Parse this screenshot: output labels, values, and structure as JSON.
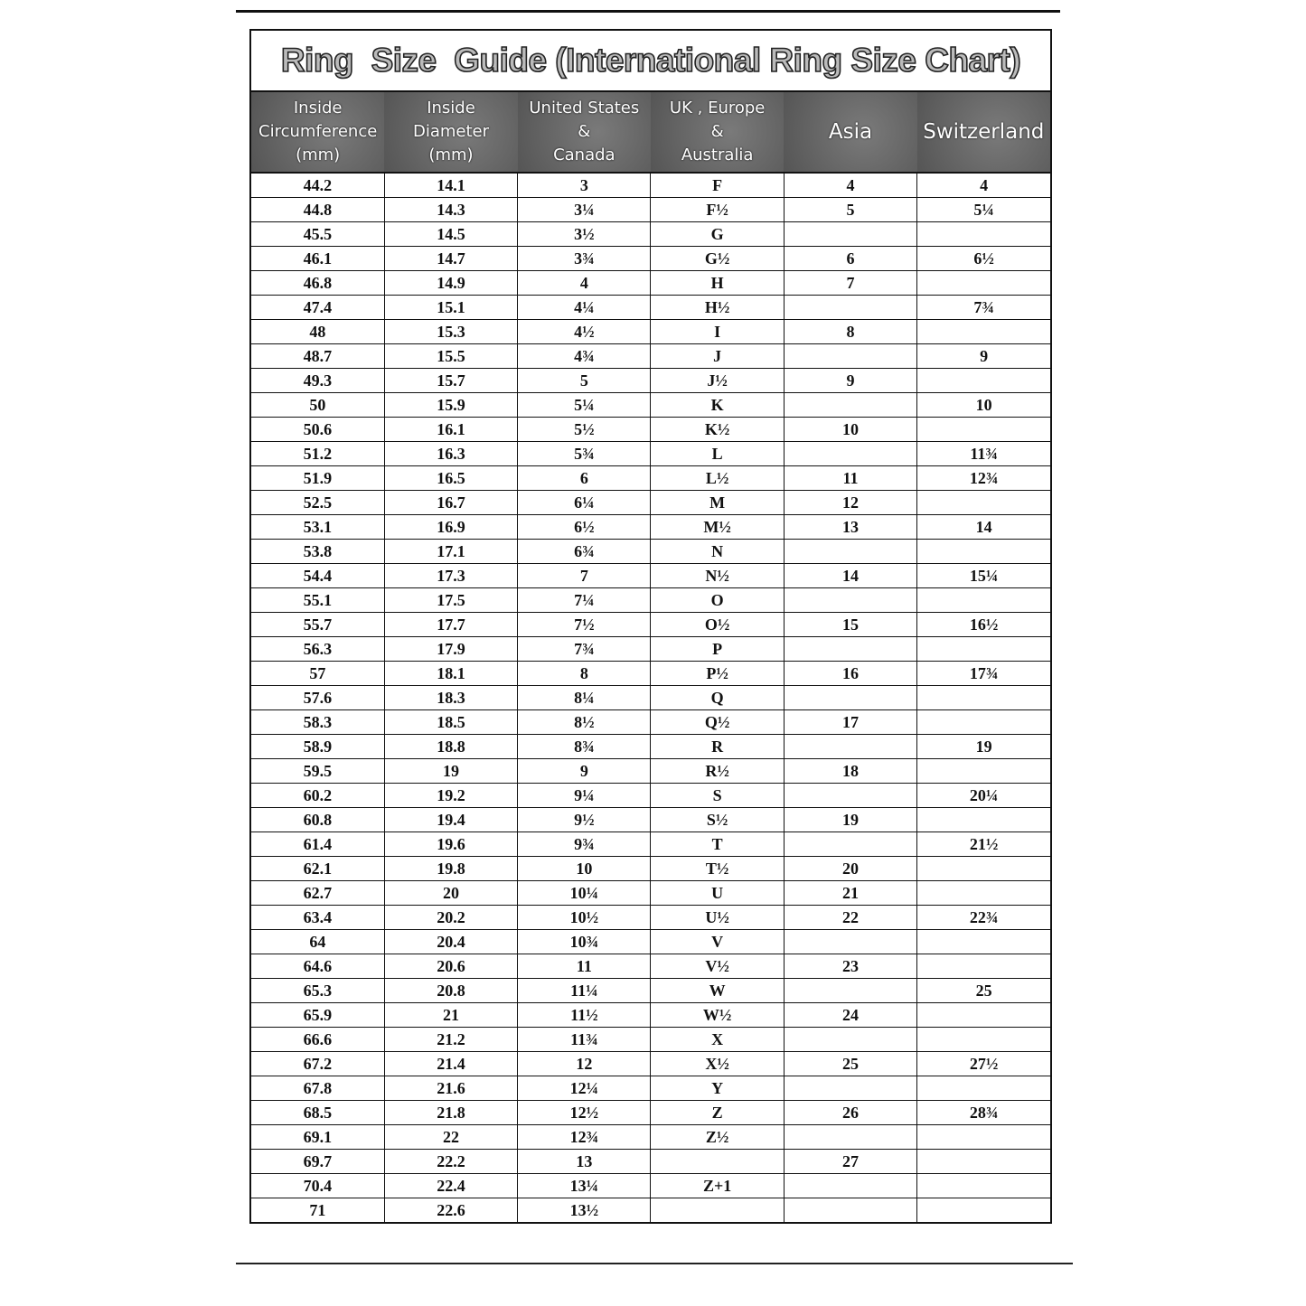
{
  "title": "Ring  Size  Guide (International Ring Size Chart)",
  "headers": [
    [
      "Inside",
      "Circumference",
      "(mm)"
    ],
    [
      "Inside",
      "Diameter",
      "(mm)"
    ],
    [
      "United States",
      "&",
      "Canada"
    ],
    [
      "UK , Europe",
      "&",
      "Australia"
    ],
    [
      "Asia"
    ],
    [
      "Switzerland"
    ]
  ],
  "rows": [
    [
      "44.2",
      "14.1",
      "3",
      "F",
      "4",
      "4"
    ],
    [
      "44.8",
      "14.3",
      "3¼",
      "F½",
      "5",
      "5¼"
    ],
    [
      "45.5",
      "14.5",
      "3½",
      "G",
      "",
      ""
    ],
    [
      "46.1",
      "14.7",
      "3¾",
      "G½",
      "6",
      "6½"
    ],
    [
      "46.8",
      "14.9",
      "4",
      "H",
      "7",
      ""
    ],
    [
      "47.4",
      "15.1",
      "4¼",
      "H½",
      "",
      "7¾"
    ],
    [
      "48",
      "15.3",
      "4½",
      "I",
      "8",
      ""
    ],
    [
      "48.7",
      "15.5",
      "4¾",
      "J",
      "",
      "9"
    ],
    [
      "49.3",
      "15.7",
      "5",
      "J½",
      "9",
      ""
    ],
    [
      "50",
      "15.9",
      "5¼",
      "K",
      "",
      "10"
    ],
    [
      "50.6",
      "16.1",
      "5½",
      "K½",
      "10",
      ""
    ],
    [
      "51.2",
      "16.3",
      "5¾",
      "L",
      "",
      "11¾"
    ],
    [
      "51.9",
      "16.5",
      "6",
      "L½",
      "11",
      "12¾"
    ],
    [
      "52.5",
      "16.7",
      "6¼",
      "M",
      "12",
      ""
    ],
    [
      "53.1",
      "16.9",
      "6½",
      "M½",
      "13",
      "14"
    ],
    [
      "53.8",
      "17.1",
      "6¾",
      "N",
      "",
      ""
    ],
    [
      "54.4",
      "17.3",
      "7",
      "N½",
      "14",
      "15¼"
    ],
    [
      "55.1",
      "17.5",
      "7¼",
      "O",
      "",
      ""
    ],
    [
      "55.7",
      "17.7",
      "7½",
      "O½",
      "15",
      "16½"
    ],
    [
      "56.3",
      "17.9",
      "7¾",
      "P",
      "",
      ""
    ],
    [
      "57",
      "18.1",
      "8",
      "P½",
      "16",
      "17¾"
    ],
    [
      "57.6",
      "18.3",
      "8¼",
      "Q",
      "",
      ""
    ],
    [
      "58.3",
      "18.5",
      "8½",
      "Q½",
      "17",
      ""
    ],
    [
      "58.9",
      "18.8",
      "8¾",
      "R",
      "",
      "19"
    ],
    [
      "59.5",
      "19",
      "9",
      "R½",
      "18",
      ""
    ],
    [
      "60.2",
      "19.2",
      "9¼",
      "S",
      "",
      "20¼"
    ],
    [
      "60.8",
      "19.4",
      "9½",
      "S½",
      "19",
      ""
    ],
    [
      "61.4",
      "19.6",
      "9¾",
      "T",
      "",
      "21½"
    ],
    [
      "62.1",
      "19.8",
      "10",
      "T½",
      "20",
      ""
    ],
    [
      "62.7",
      "20",
      "10¼",
      "U",
      "21",
      ""
    ],
    [
      "63.4",
      "20.2",
      "10½",
      "U½",
      "22",
      "22¾"
    ],
    [
      "64",
      "20.4",
      "10¾",
      "V",
      "",
      ""
    ],
    [
      "64.6",
      "20.6",
      "11",
      "V½",
      "23",
      ""
    ],
    [
      "65.3",
      "20.8",
      "11¼",
      "W",
      "",
      "25"
    ],
    [
      "65.9",
      "21",
      "11½",
      "W½",
      "24",
      ""
    ],
    [
      "66.6",
      "21.2",
      "11¾",
      "X",
      "",
      ""
    ],
    [
      "67.2",
      "21.4",
      "12",
      "X½",
      "25",
      "27½"
    ],
    [
      "67.8",
      "21.6",
      "12¼",
      "Y",
      "",
      ""
    ],
    [
      "68.5",
      "21.8",
      "12½",
      "Z",
      "26",
      "28¾"
    ],
    [
      "69.1",
      "22",
      "12¾",
      "Z½",
      "",
      ""
    ],
    [
      "69.7",
      "22.2",
      "13",
      "",
      "27",
      ""
    ],
    [
      "70.4",
      "22.4",
      "13¼",
      "Z+1",
      "",
      ""
    ],
    [
      "71",
      "22.6",
      "13½",
      "",
      "",
      ""
    ]
  ]
}
